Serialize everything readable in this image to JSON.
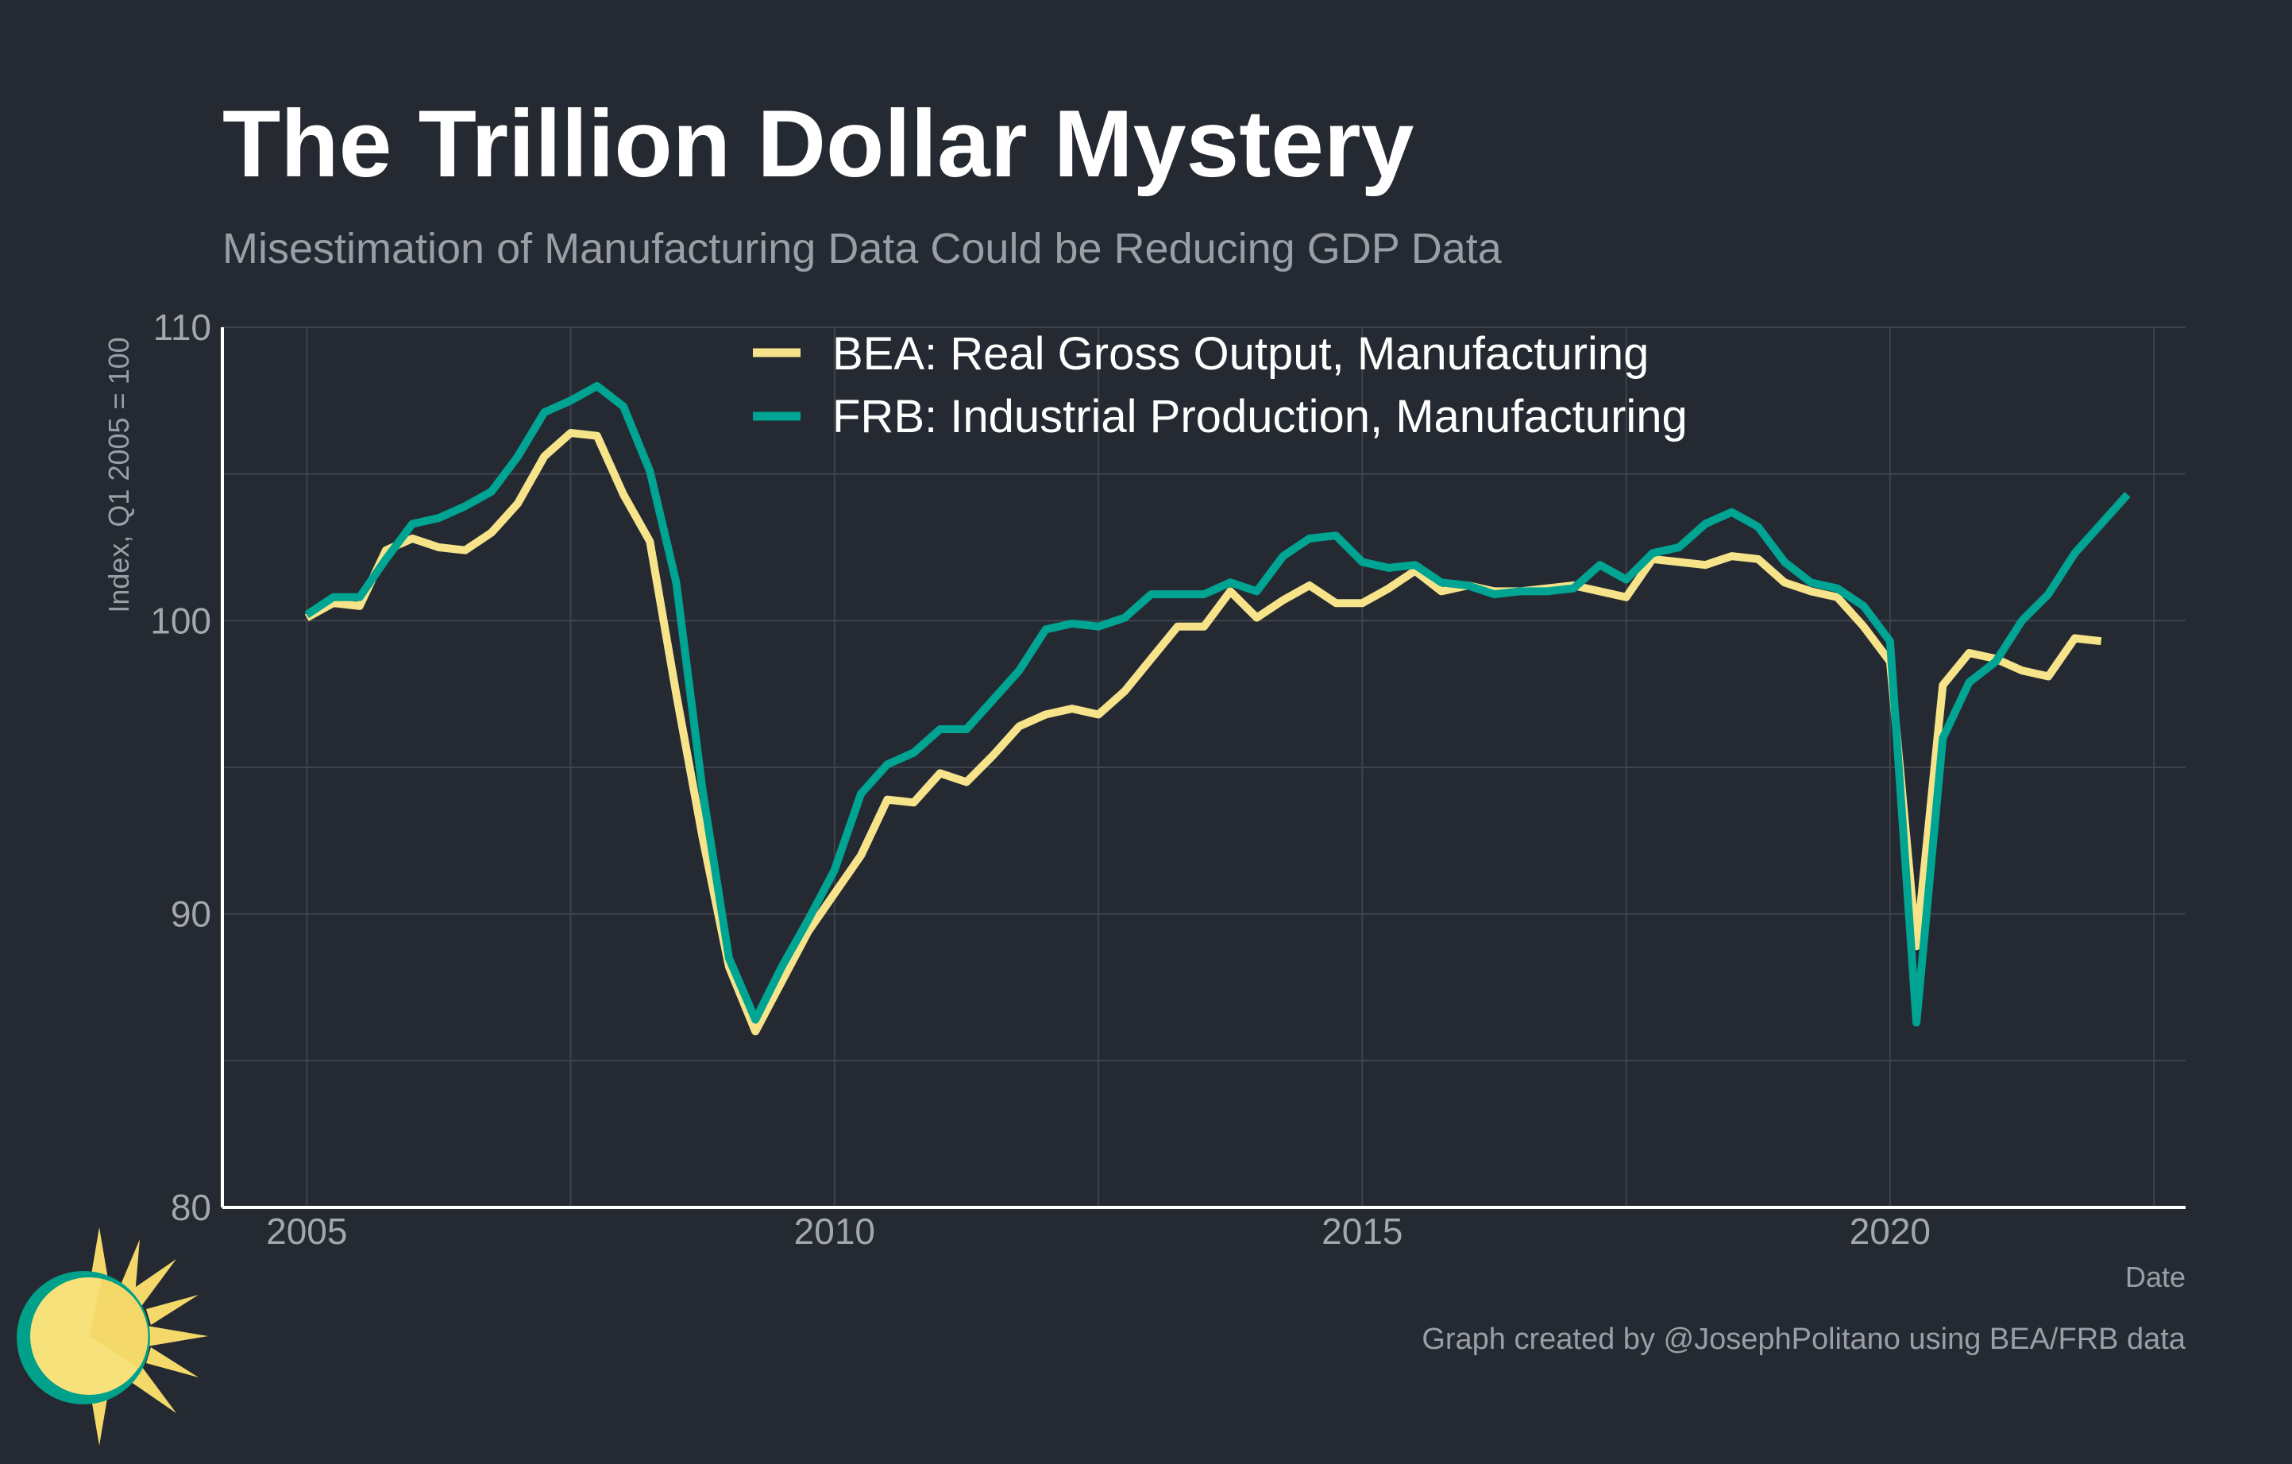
{
  "header": {
    "title": "The Trillion Dollar Mystery",
    "subtitle": "Misestimation of Manufacturing Data Could be Reducing GDP Data"
  },
  "footer": {
    "caption": "Graph created by @JosephPolitano using BEA/FRB data"
  },
  "logo": {
    "icon": "sun-logo-icon",
    "colors": [
      "#f6e17a",
      "#f4d96a",
      "#00a08a"
    ]
  },
  "colors": {
    "background": "#252a32",
    "grid": "#3e434c",
    "axis": "#ffffff"
  },
  "chart_data": {
    "type": "line",
    "xlabel": "Date",
    "ylabel": "Index, Q1 2005 = 100",
    "xlim": [
      2004.2,
      2022.8
    ],
    "ylim": [
      80,
      110
    ],
    "x_ticks": [
      2005,
      2010,
      2015,
      2020
    ],
    "y_ticks": [
      80,
      90,
      100,
      110
    ],
    "grid": true,
    "legend_position": "top",
    "series": [
      {
        "name": "BEA: Real Gross Output, Manufacturing",
        "color": "#f6e38a",
        "x": [
          2005.0,
          2005.25,
          2005.5,
          2005.75,
          2006.0,
          2006.25,
          2006.5,
          2006.75,
          2007.0,
          2007.25,
          2007.5,
          2007.75,
          2008.0,
          2008.25,
          2008.5,
          2008.75,
          2009.0,
          2009.25,
          2009.5,
          2009.75,
          2010.0,
          2010.25,
          2010.5,
          2010.75,
          2011.0,
          2011.25,
          2011.5,
          2011.75,
          2012.0,
          2012.25,
          2012.5,
          2012.75,
          2013.0,
          2013.25,
          2013.5,
          2013.75,
          2014.0,
          2014.25,
          2014.5,
          2014.75,
          2015.0,
          2015.25,
          2015.5,
          2015.75,
          2016.0,
          2016.25,
          2016.5,
          2016.75,
          2017.0,
          2017.25,
          2017.5,
          2017.75,
          2018.0,
          2018.25,
          2018.5,
          2018.75,
          2019.0,
          2019.25,
          2019.5,
          2019.75,
          2020.0,
          2020.25,
          2020.5,
          2020.75,
          2021.0,
          2021.25,
          2021.5,
          2021.75,
          2022.0
        ],
        "values": [
          100.1,
          100.6,
          100.5,
          102.4,
          102.8,
          102.5,
          102.4,
          103.0,
          104.0,
          105.6,
          106.4,
          106.3,
          104.3,
          102.7,
          97.5,
          92.6,
          88.2,
          86.0,
          87.7,
          89.4,
          90.7,
          92.0,
          93.9,
          93.8,
          94.8,
          94.5,
          95.4,
          96.4,
          96.8,
          97.0,
          96.8,
          97.6,
          98.7,
          99.8,
          99.8,
          101.0,
          100.1,
          100.7,
          101.2,
          100.6,
          100.6,
          101.1,
          101.7,
          101.0,
          101.2,
          101.0,
          101.0,
          101.1,
          101.2,
          101.0,
          100.8,
          102.1,
          102.0,
          101.9,
          102.2,
          102.1,
          101.3,
          101.0,
          100.8,
          99.8,
          98.6,
          88.9,
          97.8,
          98.9,
          98.7,
          98.3,
          98.1,
          99.4,
          99.3
        ]
      },
      {
        "name": "FRB: Industrial Production, Manufacturing",
        "color": "#00a492",
        "x": [
          2005.0,
          2005.25,
          2005.5,
          2005.75,
          2006.0,
          2006.25,
          2006.5,
          2006.75,
          2007.0,
          2007.25,
          2007.5,
          2007.75,
          2008.0,
          2008.25,
          2008.5,
          2008.75,
          2009.0,
          2009.25,
          2009.5,
          2009.75,
          2010.0,
          2010.25,
          2010.5,
          2010.75,
          2011.0,
          2011.25,
          2011.5,
          2011.75,
          2012.0,
          2012.25,
          2012.5,
          2012.75,
          2013.0,
          2013.25,
          2013.5,
          2013.75,
          2014.0,
          2014.25,
          2014.5,
          2014.75,
          2015.0,
          2015.25,
          2015.5,
          2015.75,
          2016.0,
          2016.25,
          2016.5,
          2016.75,
          2017.0,
          2017.25,
          2017.5,
          2017.75,
          2018.0,
          2018.25,
          2018.5,
          2018.75,
          2019.0,
          2019.25,
          2019.5,
          2019.75,
          2020.0,
          2020.25,
          2020.5,
          2020.75,
          2021.0,
          2021.25,
          2021.5,
          2021.75,
          2022.0,
          2022.25
        ],
        "values": [
          100.2,
          100.8,
          100.8,
          102.1,
          103.3,
          103.5,
          103.9,
          104.4,
          105.6,
          107.1,
          107.5,
          108.0,
          107.3,
          105.1,
          101.3,
          94.2,
          88.5,
          86.4,
          88.2,
          89.8,
          91.5,
          94.1,
          95.1,
          95.5,
          96.3,
          96.3,
          97.3,
          98.3,
          99.7,
          99.9,
          99.8,
          100.1,
          100.9,
          100.9,
          100.9,
          101.3,
          101.0,
          102.2,
          102.8,
          102.9,
          102.0,
          101.8,
          101.9,
          101.3,
          101.2,
          100.9,
          101.0,
          101.0,
          101.1,
          101.9,
          101.4,
          102.3,
          102.5,
          103.3,
          103.7,
          103.2,
          102.0,
          101.3,
          101.1,
          100.5,
          99.3,
          86.3,
          96.0,
          97.9,
          98.6,
          100.0,
          100.9,
          102.3,
          103.3,
          104.3
        ]
      }
    ]
  }
}
